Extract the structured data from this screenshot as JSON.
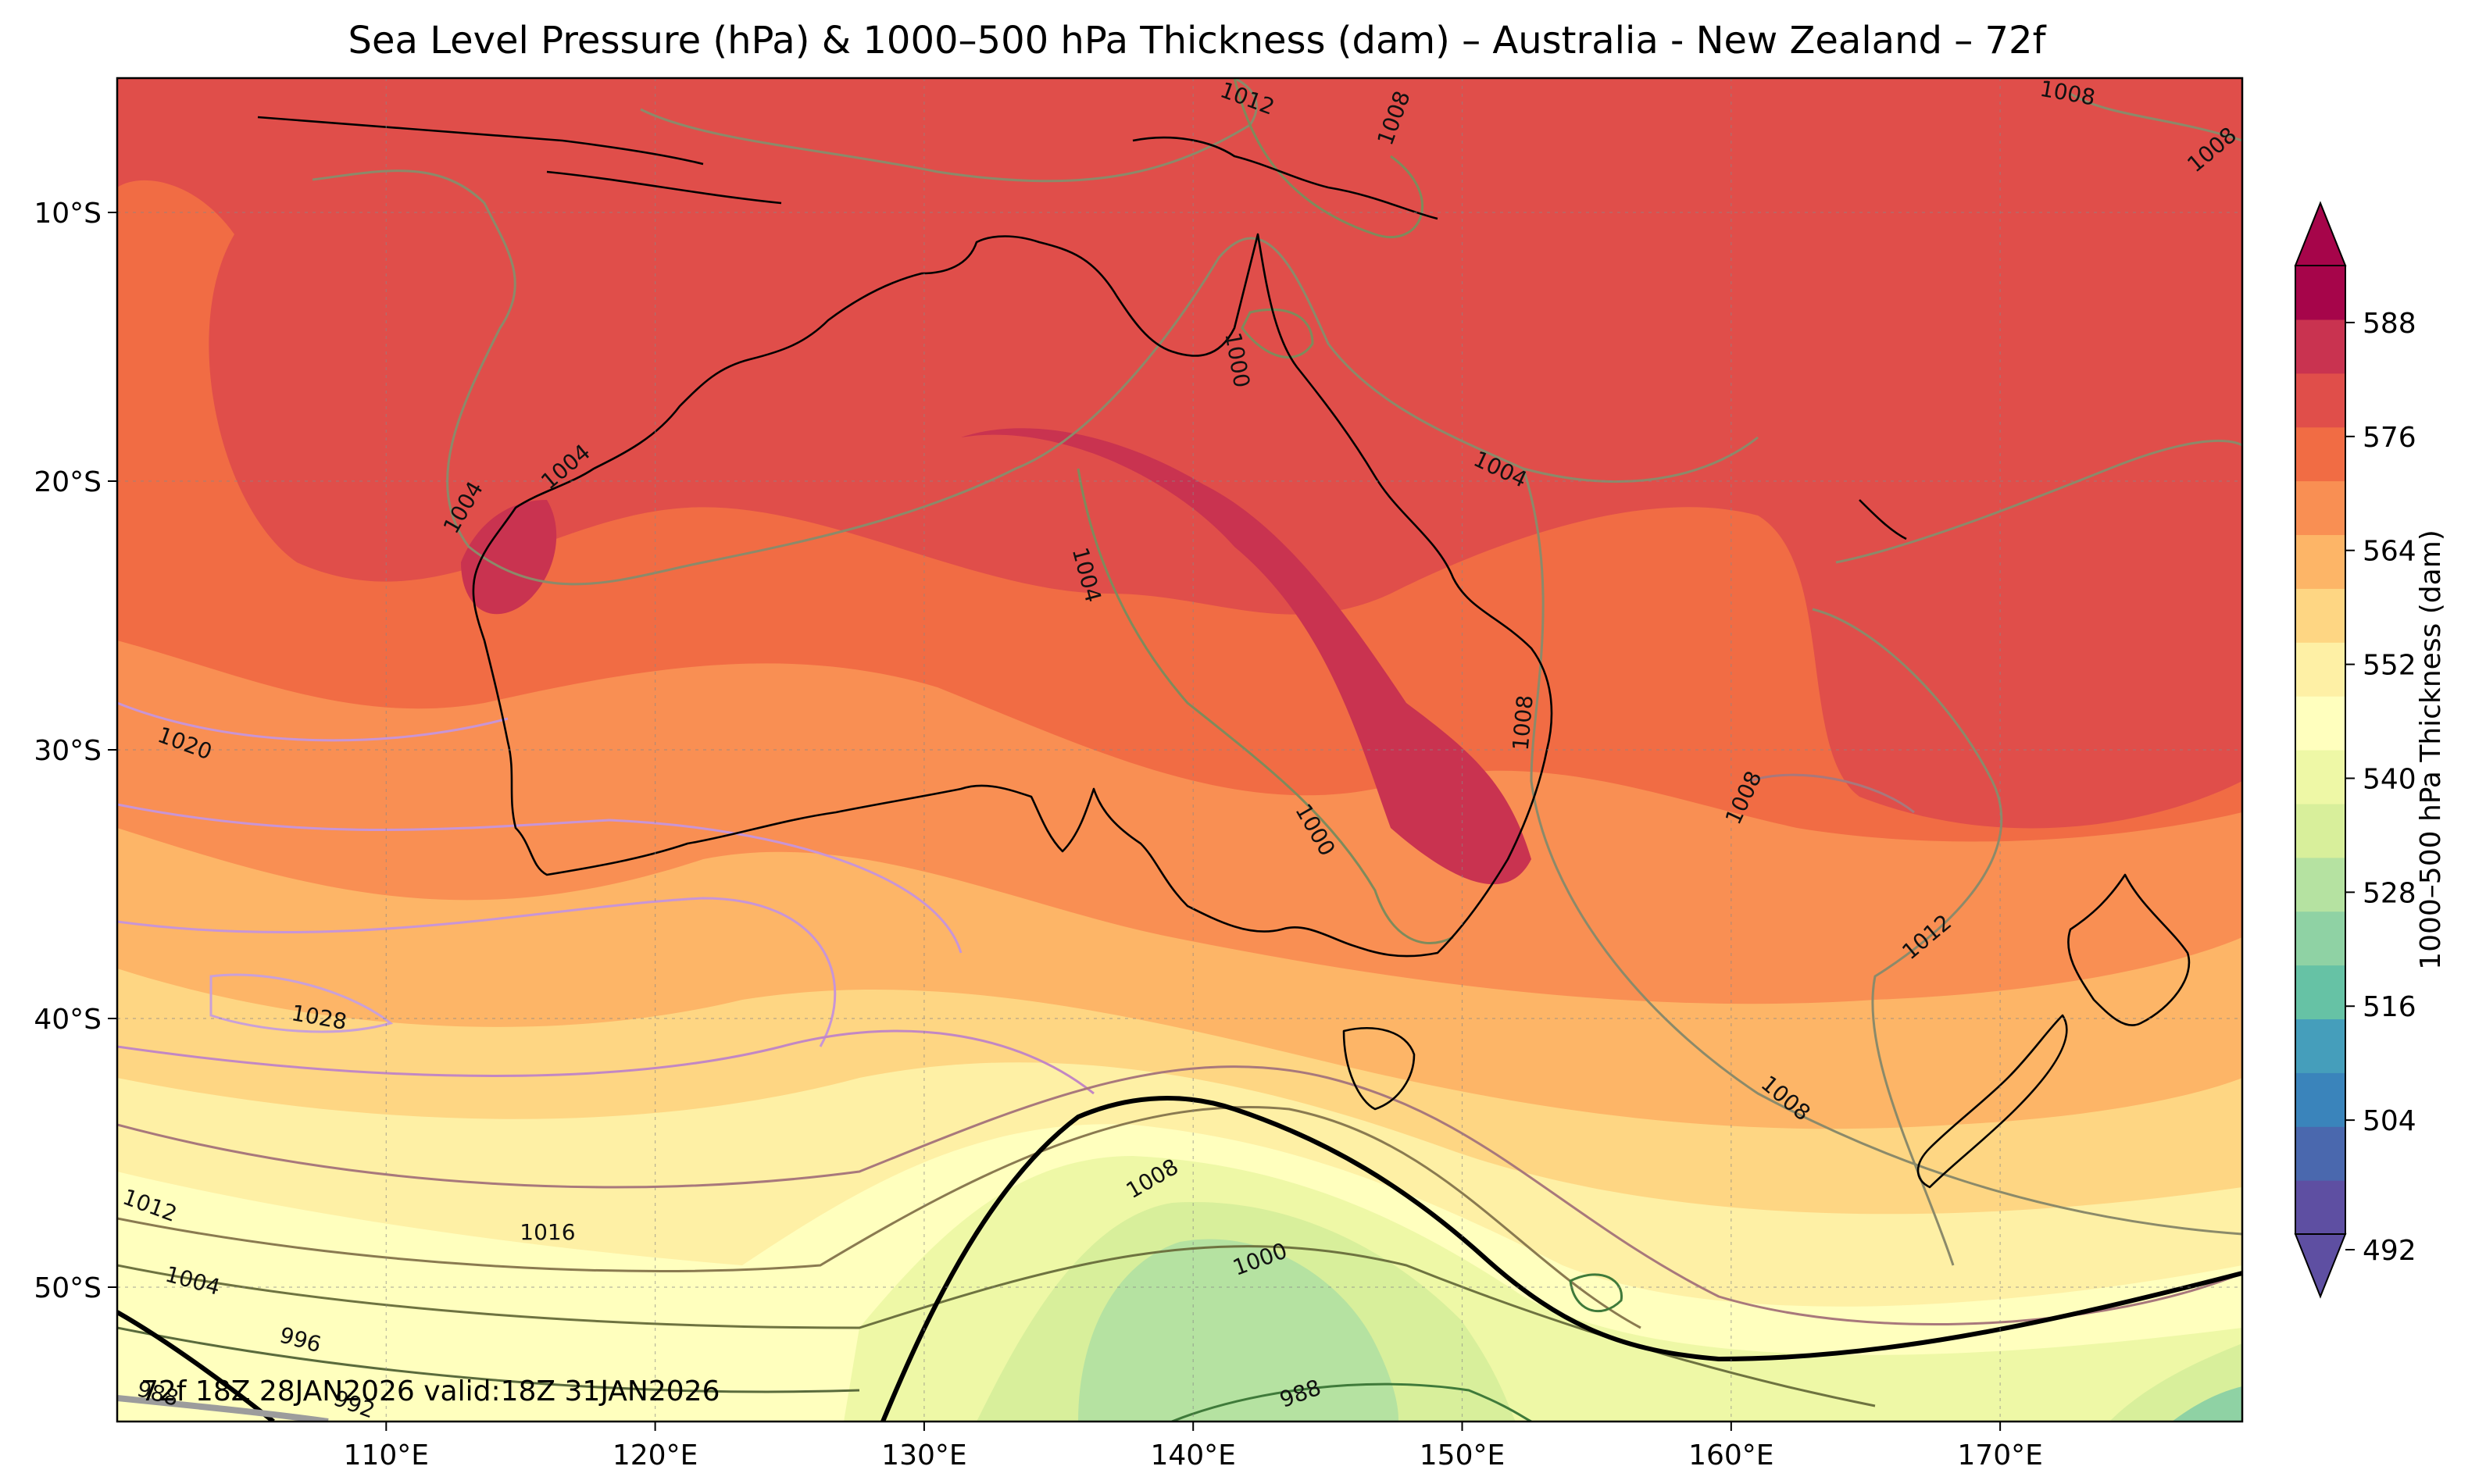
{
  "title": "Sea Level Pressure (hPa) & 1000–500 hPa Thickness (dam) – Australia - New Zealand – 72f",
  "footer": "72f 18Z 28JAN2026 valid:18Z 31JAN2026",
  "map": {
    "lon_range": [
      100,
      179
    ],
    "lat_range": [
      -55,
      -5
    ],
    "lon_ticks": [
      {
        "value": 110,
        "label": "110°E"
      },
      {
        "value": 120,
        "label": "120°E"
      },
      {
        "value": 130,
        "label": "130°E"
      },
      {
        "value": 140,
        "label": "140°E"
      },
      {
        "value": 150,
        "label": "150°E"
      },
      {
        "value": 160,
        "label": "160°E"
      },
      {
        "value": 170,
        "label": "170°E"
      }
    ],
    "lat_ticks": [
      {
        "value": -10,
        "label": "10°S"
      },
      {
        "value": -20,
        "label": "20°S"
      },
      {
        "value": -30,
        "label": "30°S"
      },
      {
        "value": -40,
        "label": "40°S"
      },
      {
        "value": -50,
        "label": "50°S"
      }
    ],
    "gridlines": true,
    "isobar_labels": [
      {
        "lon": 142.0,
        "lat": -5.8,
        "text": "1012",
        "rot": 20
      },
      {
        "lon": 147.5,
        "lat": -6.5,
        "text": "1008",
        "rot": -70
      },
      {
        "lon": 172.5,
        "lat": -5.6,
        "text": "1008",
        "rot": 10
      },
      {
        "lon": 177.9,
        "lat": -7.7,
        "text": "1008",
        "rot": -40
      },
      {
        "lon": 141.6,
        "lat": -15.5,
        "text": "1000",
        "rot": 80
      },
      {
        "lon": 112.9,
        "lat": -21.0,
        "text": "1004",
        "rot": -60
      },
      {
        "lon": 116.7,
        "lat": -19.5,
        "text": "1004",
        "rot": -40
      },
      {
        "lon": 136.0,
        "lat": -23.5,
        "text": "1004",
        "rot": 75
      },
      {
        "lon": 151.4,
        "lat": -19.6,
        "text": "1004",
        "rot": 25
      },
      {
        "lon": 152.3,
        "lat": -29.0,
        "text": "1008",
        "rot": -85
      },
      {
        "lon": 144.5,
        "lat": -33.0,
        "text": "1000",
        "rot": 60
      },
      {
        "lon": 160.5,
        "lat": -31.8,
        "text": "1008",
        "rot": -65
      },
      {
        "lon": 167.3,
        "lat": -37.0,
        "text": "1012",
        "rot": -40
      },
      {
        "lon": 102.5,
        "lat": -29.8,
        "text": "1020",
        "rot": 20
      },
      {
        "lon": 107.5,
        "lat": -40.0,
        "text": "1028",
        "rot": 10
      },
      {
        "lon": 162.0,
        "lat": -43.0,
        "text": "1008",
        "rot": 40
      },
      {
        "lon": 138.5,
        "lat": -46.0,
        "text": "1008",
        "rot": -30
      },
      {
        "lon": 142.5,
        "lat": -49.0,
        "text": "1000",
        "rot": -20
      },
      {
        "lon": 116.0,
        "lat": -48.0,
        "text": "1016",
        "rot": 0
      },
      {
        "lon": 101.2,
        "lat": -47.0,
        "text": "1012",
        "rot": 20
      },
      {
        "lon": 102.8,
        "lat": -49.8,
        "text": "1004",
        "rot": 15
      },
      {
        "lon": 106.8,
        "lat": -52.0,
        "text": "996",
        "rot": 15
      },
      {
        "lon": 108.8,
        "lat": -54.4,
        "text": "992",
        "rot": 20
      },
      {
        "lon": 101.5,
        "lat": -54.0,
        "text": "988",
        "rot": 15
      },
      {
        "lon": 144.0,
        "lat": -54.0,
        "text": "988",
        "rot": -20
      }
    ]
  },
  "colorbar": {
    "label": "1000–500 hPa Thickness (dam)",
    "levels": [
      492,
      498,
      504,
      510,
      516,
      522,
      528,
      534,
      540,
      546,
      552,
      558,
      564,
      570,
      576,
      582,
      588,
      594
    ],
    "colors": [
      "#5e4fa2",
      "#4a68ae",
      "#3a84bb",
      "#459ebb",
      "#66c2a5",
      "#8fd2a4",
      "#b5e2a1",
      "#d8ef9b",
      "#eef8a6",
      "#ffffbe",
      "#fef0a5",
      "#fed683",
      "#fdb567",
      "#f98f53",
      "#f16c44",
      "#e04e4a",
      "#c93350",
      "#a6054a"
    ],
    "tick_values": [
      492,
      504,
      516,
      528,
      540,
      552,
      564,
      576,
      588
    ],
    "tick_labels": [
      "492",
      "504",
      "516",
      "528",
      "540",
      "552",
      "564",
      "576",
      "588"
    ],
    "extend": "both"
  }
}
